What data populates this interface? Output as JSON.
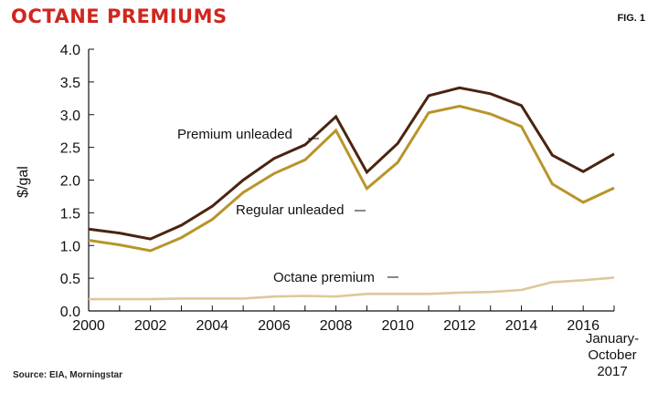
{
  "header": {
    "title": "OCTANE PREMIUMS",
    "fig_label": "FIG. 1"
  },
  "footer": {
    "source": "Source: EIA, Morningstar"
  },
  "colors": {
    "title": "#d0261e",
    "premium": "#4a2410",
    "regular": "#b8952a",
    "octane": "#ddc89a",
    "axis": "#111111"
  },
  "chart_data": {
    "type": "line",
    "title": "",
    "xlabel": "",
    "ylabel": "$/gal",
    "x": [
      "2000",
      "2001",
      "2002",
      "2003",
      "2004",
      "2005",
      "2006",
      "2007",
      "2008",
      "2009",
      "2010",
      "2011",
      "2012",
      "2013",
      "2014",
      "2015",
      "2016",
      "January-October 2017"
    ],
    "x_tick_labels": [
      "2000",
      "",
      "2002",
      "",
      "2004",
      "",
      "2006",
      "",
      "2008",
      "",
      "2010",
      "",
      "2012",
      "",
      "2014",
      "",
      "2016",
      ""
    ],
    "last_x_label_lines": [
      "January-",
      "October",
      "2017"
    ],
    "ylim": [
      0,
      4
    ],
    "yticks": [
      "0.0",
      "0.5",
      "1.0",
      "1.5",
      "2.0",
      "2.5",
      "3.0",
      "3.5",
      "4.0"
    ],
    "grid": false,
    "series": [
      {
        "name": "Premium unleaded",
        "color": "#4a2410",
        "values": [
          1.25,
          1.19,
          1.1,
          1.31,
          1.6,
          2.0,
          2.33,
          2.54,
          2.97,
          2.12,
          2.56,
          3.29,
          3.41,
          3.32,
          3.14,
          2.38,
          2.13,
          2.4
        ]
      },
      {
        "name": "Regular unleaded",
        "color": "#b8952a",
        "values": [
          1.08,
          1.01,
          0.92,
          1.12,
          1.4,
          1.81,
          2.1,
          2.31,
          2.76,
          1.87,
          2.27,
          3.03,
          3.13,
          3.01,
          2.82,
          1.94,
          1.66,
          1.88
        ]
      },
      {
        "name": "Octane premium",
        "color": "#ddc89a",
        "values": [
          0.18,
          0.18,
          0.18,
          0.19,
          0.19,
          0.19,
          0.22,
          0.23,
          0.22,
          0.26,
          0.26,
          0.26,
          0.28,
          0.29,
          0.32,
          0.44,
          0.47,
          0.51
        ]
      }
    ]
  }
}
